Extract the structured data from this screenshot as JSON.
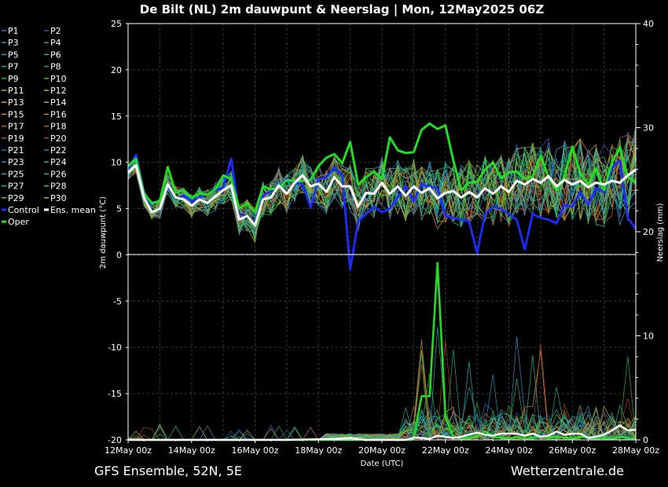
{
  "chart_data": {
    "type": "line",
    "title": "De Bilt  (NL)  2m dauwpunt & Neerslag | Mon, 12May2025 06Z",
    "xlabel": "Date (UTC)",
    "ylabel_left": "2m dauwpunt (°C)",
    "ylabel_right": "Neerslag (mm)",
    "footer_left": "GFS Ensemble, 52N, 5E",
    "footer_right": "Wetterzentrale.de",
    "x_ticks": [
      "12May 00z",
      "14May 00z",
      "16May 00z",
      "18May 00z",
      "20May 00z",
      "22May 00z",
      "24May 00z",
      "26May 00z",
      "28May 00z"
    ],
    "xlim_hours": [
      0,
      384
    ],
    "ylim_left": [
      -20,
      25
    ],
    "yticks_left": [
      "25",
      "20",
      "15",
      "10",
      "5",
      "0",
      "-5",
      "-10",
      "-15",
      "-20"
    ],
    "ylim_right": [
      0,
      40
    ],
    "yticks_right": [
      "40",
      "30",
      "20",
      "10",
      "0"
    ],
    "grid": true,
    "legend_placement": "left-outside",
    "legend": [
      {
        "name": "P1",
        "color": "#3b6fd6"
      },
      {
        "name": "P2",
        "color": "#2a55c8"
      },
      {
        "name": "P3",
        "color": "#3a8ec8"
      },
      {
        "name": "P4",
        "color": "#2a9bb8"
      },
      {
        "name": "P5",
        "color": "#22a8b4"
      },
      {
        "name": "P6",
        "color": "#20b49a"
      },
      {
        "name": "P7",
        "color": "#1fb07c"
      },
      {
        "name": "P8",
        "color": "#1cae5c"
      },
      {
        "name": "P9",
        "color": "#24b446"
      },
      {
        "name": "P10",
        "color": "#2ebc32"
      },
      {
        "name": "P11",
        "color": "#a6b83a"
      },
      {
        "name": "P12",
        "color": "#c4b03e"
      },
      {
        "name": "P13",
        "color": "#c8a83a"
      },
      {
        "name": "P14",
        "color": "#c89a36"
      },
      {
        "name": "P15",
        "color": "#c48a3c"
      },
      {
        "name": "P16",
        "color": "#c47a38"
      },
      {
        "name": "P17",
        "color": "#c86a30"
      },
      {
        "name": "P18",
        "color": "#c05a2c"
      },
      {
        "name": "P19",
        "color": "#b84a28"
      },
      {
        "name": "P20",
        "color": "#b83c24"
      },
      {
        "name": "P21",
        "color": "#2e64c0"
      },
      {
        "name": "P22",
        "color": "#2e80c8"
      },
      {
        "name": "P23",
        "color": "#3094c0"
      },
      {
        "name": "P24",
        "color": "#2ea8b8"
      },
      {
        "name": "P25",
        "color": "#26b4a8"
      },
      {
        "name": "P26",
        "color": "#22b890"
      },
      {
        "name": "P27",
        "color": "#2cbc6c"
      },
      {
        "name": "P28",
        "color": "#38c048"
      },
      {
        "name": "P29",
        "color": "#66c030"
      },
      {
        "name": "P30",
        "color": "#b0b030"
      },
      {
        "name": "Control",
        "color": "#1a2cff"
      },
      {
        "name": "Ens. mean",
        "color": "#ffffff"
      },
      {
        "name": "Oper",
        "color": "#22dd22"
      }
    ],
    "series": [
      {
        "name": "Ens. mean",
        "axis": "left",
        "color": "#ffffff",
        "x": [
          0,
          6,
          12,
          18,
          24,
          30,
          36,
          42,
          48,
          54,
          60,
          66,
          72,
          78,
          84,
          90,
          96,
          102,
          108,
          114,
          120,
          126,
          132,
          138,
          144,
          150,
          156,
          162,
          168,
          174,
          180,
          186,
          192,
          198,
          204,
          210,
          216,
          222,
          228,
          234,
          240,
          246,
          252,
          258,
          264,
          270,
          276,
          282,
          288,
          294,
          300,
          306,
          312,
          318,
          324,
          330,
          336,
          342,
          348,
          354,
          360,
          366,
          372,
          378,
          384
        ],
        "y": [
          8.9,
          9.7,
          6.2,
          4.6,
          5.0,
          7.6,
          6.2,
          6.0,
          5.3,
          6.0,
          5.6,
          6.3,
          7.0,
          7.5,
          3.8,
          4.2,
          3.2,
          6.0,
          6.2,
          7.5,
          6.6,
          7.8,
          8.6,
          7.4,
          7.7,
          6.8,
          8.4,
          7.4,
          7.4,
          5.2,
          6.7,
          6.6,
          7.8,
          6.6,
          7.4,
          6.4,
          7.4,
          6.7,
          7.2,
          6.1,
          6.7,
          6.9,
          6.2,
          6.8,
          6.2,
          7.2,
          6.6,
          7.4,
          6.8,
          8.0,
          7.6,
          8.2,
          7.8,
          8.5,
          7.4,
          8.1,
          7.6,
          8.0,
          7.3,
          7.8,
          7.6,
          8.0,
          7.8,
          8.6,
          9.2
        ]
      },
      {
        "name": "Oper",
        "axis": "left",
        "color": "#22dd22",
        "x": [
          0,
          6,
          12,
          18,
          24,
          30,
          36,
          42,
          48,
          54,
          60,
          66,
          72,
          78,
          84,
          90,
          96,
          102,
          108,
          114,
          120,
          126,
          132,
          138,
          144,
          150,
          156,
          162,
          168,
          174,
          180,
          186,
          192,
          198,
          204,
          210,
          216,
          222,
          228,
          234,
          240,
          246,
          252,
          258,
          264,
          270,
          276,
          282,
          288,
          294,
          300,
          306,
          312,
          318,
          324,
          330,
          336,
          342,
          348,
          354,
          360,
          366,
          372,
          378,
          384
        ],
        "y": [
          9.6,
          10.4,
          6.6,
          5.6,
          5.8,
          9.5,
          6.7,
          7.0,
          6.2,
          6.6,
          6.5,
          7.1,
          8.6,
          8.2,
          5.0,
          5.6,
          4.6,
          7.4,
          7.1,
          7.2,
          8.1,
          8.0,
          8.0,
          8.1,
          9.6,
          10.5,
          10.9,
          9.9,
          12.2,
          7.6,
          8.4,
          9.0,
          8.2,
          12.7,
          11.3,
          11.0,
          11.1,
          13.5,
          14.2,
          13.6,
          14.0,
          10.2,
          7.0,
          7.8,
          7.9,
          9.2,
          10.0,
          8.3,
          8.9,
          9.0,
          8.2,
          8.5,
          10.7,
          8.4,
          7.0,
          8.4,
          11.7,
          8.8,
          7.6,
          9.3,
          7.0,
          10.0,
          11.6,
          8.4,
          7.8
        ]
      },
      {
        "name": "Control",
        "axis": "left",
        "color": "#1a2cff",
        "x": [
          0,
          6,
          12,
          18,
          24,
          30,
          36,
          42,
          48,
          54,
          60,
          66,
          72,
          78,
          84,
          90,
          96,
          102,
          108,
          114,
          120,
          126,
          132,
          138,
          144,
          150,
          156,
          162,
          168,
          174,
          180,
          186,
          192,
          198,
          204,
          210,
          216,
          222,
          228,
          234,
          240,
          246,
          252,
          258,
          264,
          270,
          276,
          282,
          288,
          294,
          300,
          306,
          312,
          318,
          324,
          330,
          336,
          342,
          348,
          354,
          360,
          366,
          372,
          378,
          384
        ],
        "y": [
          9.2,
          10.8,
          6.8,
          4.6,
          5.0,
          7.4,
          6.1,
          6.4,
          5.8,
          6.2,
          6.6,
          7.0,
          7.2,
          10.4,
          4.4,
          4.2,
          3.4,
          6.4,
          6.9,
          7.2,
          8.3,
          7.8,
          7.6,
          5.1,
          8.2,
          8.4,
          9.4,
          8.6,
          -1.6,
          3.6,
          4.4,
          5.2,
          4.6,
          5.0,
          6.2,
          7.4,
          5.8,
          7.6,
          7.4,
          7.2,
          4.2,
          4.0,
          3.8,
          3.6,
          0.2,
          4.4,
          5.2,
          5.0,
          4.4,
          3.8,
          0.6,
          4.4,
          4.0,
          3.8,
          3.4,
          5.4,
          5.2,
          6.8,
          5.4,
          7.2,
          6.8,
          9.4,
          10.2,
          4.0,
          2.8
        ]
      },
      {
        "name": "Oper precip",
        "axis": "right",
        "color": "#22dd22",
        "x": [
          0,
          180,
          198,
          214,
          216,
          222,
          228,
          234,
          240,
          246,
          252,
          258,
          264,
          270,
          276,
          282,
          288,
          294,
          300,
          306,
          312,
          318,
          324,
          330,
          336,
          342,
          348,
          354,
          360,
          366,
          372,
          378,
          384
        ],
        "y": [
          0,
          0,
          0,
          0,
          0.2,
          4.2,
          4.2,
          17,
          2.2,
          0.3,
          0.1,
          0.2,
          0.4,
          0.8,
          0.3,
          0.2,
          0.1,
          0.3,
          0.1,
          0.2,
          0.3,
          0.2,
          0.3,
          0.2,
          0.1,
          0.3,
          0.2,
          0.1,
          0.2,
          0.1,
          0.3,
          0.2,
          0.1
        ]
      },
      {
        "name": "Ens. mean precip",
        "axis": "right",
        "color": "#ffffff",
        "x": [
          0,
          96,
          120,
          156,
          168,
          180,
          198,
          210,
          216,
          222,
          228,
          234,
          240,
          246,
          252,
          258,
          264,
          270,
          276,
          282,
          288,
          294,
          300,
          306,
          312,
          318,
          324,
          330,
          336,
          342,
          348,
          354,
          360,
          366,
          372,
          378,
          384
        ],
        "y": [
          0,
          0,
          0,
          0.1,
          0.2,
          0,
          0,
          0,
          0.2,
          0.2,
          0.1,
          0.4,
          0.3,
          0.2,
          0.3,
          0.5,
          0.7,
          0.5,
          0.4,
          0.6,
          0.6,
          0.6,
          0.4,
          0.6,
          0.3,
          0.4,
          0.8,
          0.5,
          0.6,
          0.6,
          0.2,
          0.3,
          0.5,
          0.9,
          1.4,
          0.9,
          1.0
        ]
      }
    ]
  }
}
